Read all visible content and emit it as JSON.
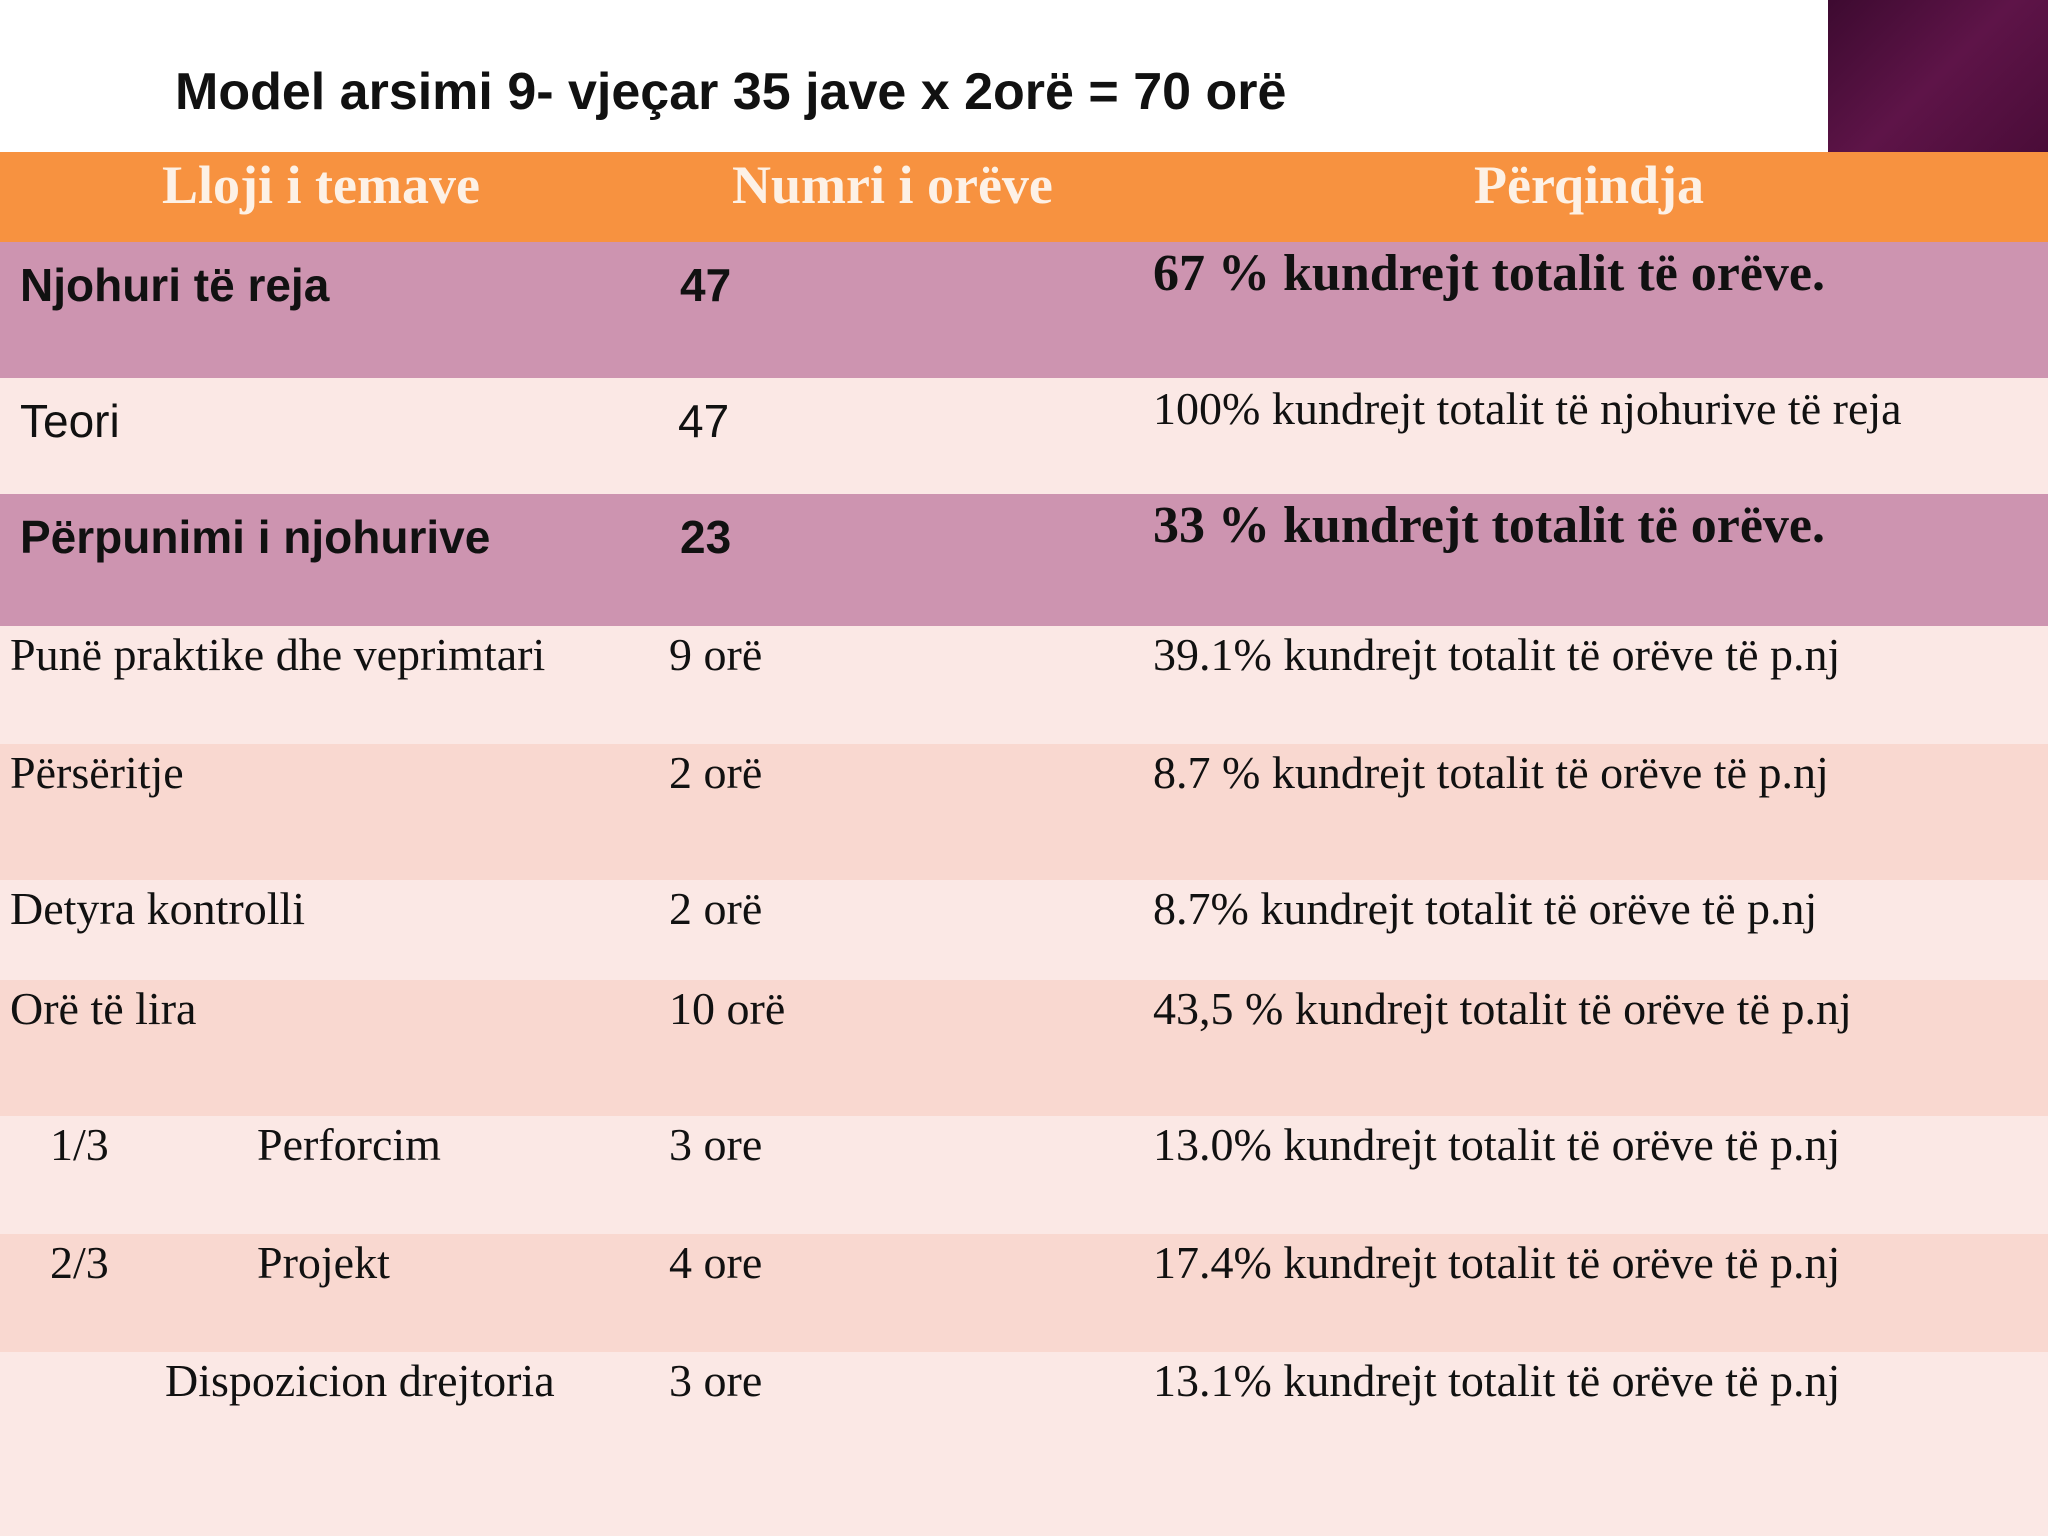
{
  "title": "Model arsimi 9- vjeçar 35 jave x 2orë = 70 orë",
  "table": {
    "headers": [
      "Lloji i temave",
      "Numri i orëve",
      "Përqindja"
    ],
    "rows": [
      {
        "c0": "Njohuri të reja",
        "c1": "47",
        "c2": "67 % kundrejt totalit të orëve."
      },
      {
        "c0": "Teori",
        "c1": "47",
        "c2": "100% kundrejt totalit të njohurive të reja"
      },
      {
        "c0": "Përpunimi i njohurive",
        "c1": "23",
        "c2": "33 % kundrejt totalit të orëve."
      },
      {
        "c0": "Punë praktike dhe veprimtari",
        "c1": "9 orë",
        "c2": "39.1%  kundrejt totalit të orëve të  p.nj"
      },
      {
        "c0": "Përsëritje",
        "c1": "2 orë",
        "c2": "8.7 %  kundrejt totalit të orëve të p.nj"
      },
      {
        "c0": "Detyra kontrolli",
        "c1": "2 orë",
        "c2": "8.7%    kundrejt totalit të orëve  të p.nj"
      },
      {
        "c0": "Orë të lira",
        "c1": "10 orë",
        "c2": "43,5 % kundrejt totalit të orëve të  p.nj"
      },
      {
        "prefix": "1/3",
        "c0": "Perforcim",
        "c1": "3 ore",
        "c2": "13.0% kundrejt totalit të orëve të  p.nj"
      },
      {
        "prefix": "2/3",
        "c0": "Projekt",
        "c1": "4 ore",
        "c2": "17.4% kundrejt totalit të orëve të  p.nj"
      },
      {
        "c0": "Dispozicion drejtoria",
        "c1": "3 ore",
        "c2": "13.1% kundrejt totalit të orëve të  p.nj"
      }
    ]
  }
}
